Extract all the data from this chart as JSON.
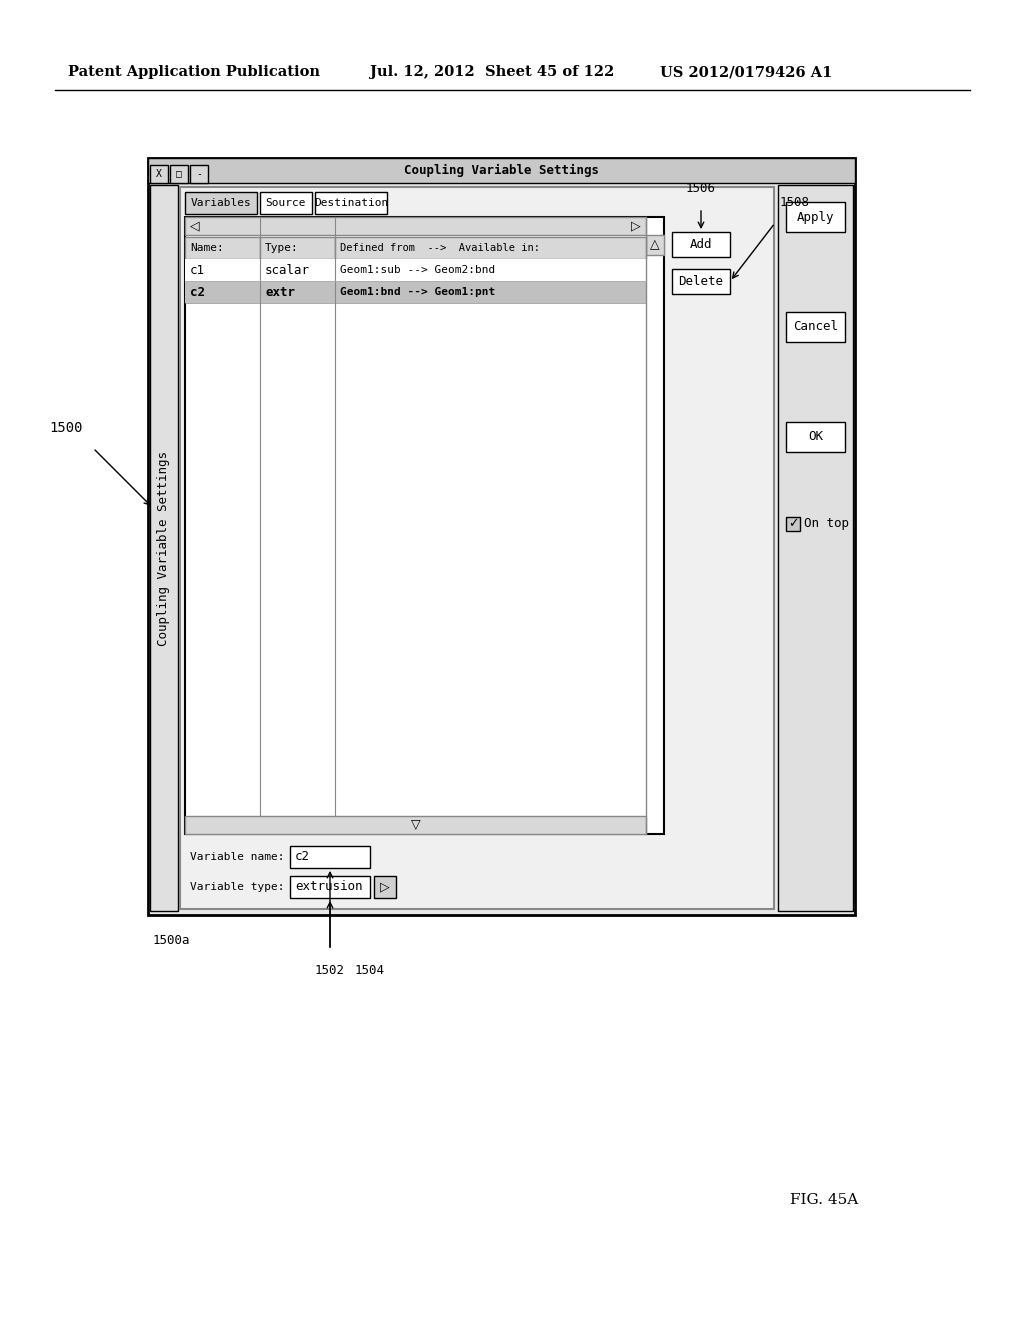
{
  "header_left": "Patent Application Publication",
  "header_middle": "Jul. 12, 2012  Sheet 45 of 122",
  "header_right": "US 2012/0179426 A1",
  "fig_label": "FIG. 45A",
  "label_1500": "1500",
  "label_1500a": "1500a",
  "label_1502": "1502",
  "label_1504": "1504",
  "label_1506": "1506",
  "label_1508": "1508",
  "window_title": "Coupling Variable Settings",
  "tab_variables": "Variables",
  "tab_source": "Source",
  "tab_destination": "Destination",
  "col_name": "Name:",
  "col_type": "Type:",
  "col_defined": "Defined from",
  "col_available": "Available in:",
  "row1_name": "c1",
  "row1_type": "scalar",
  "row1_def1": "Geom1:sub --> Geom2:bnd",
  "row2_name": "c2",
  "row2_type": "extr",
  "row2_def2": "Geom1:bnd --> Geom1:pnt",
  "var_name_label": "Variable name:",
  "var_type_label": "Variable type:",
  "var_name_val": "c2",
  "var_type_val": "extrusion",
  "btn_add": "Add",
  "btn_delete": "Delete",
  "btn_apply": "Apply",
  "btn_cancel": "Cancel",
  "btn_ok": "OK",
  "chk_ontop": "On top",
  "bg_color": "#ffffff"
}
